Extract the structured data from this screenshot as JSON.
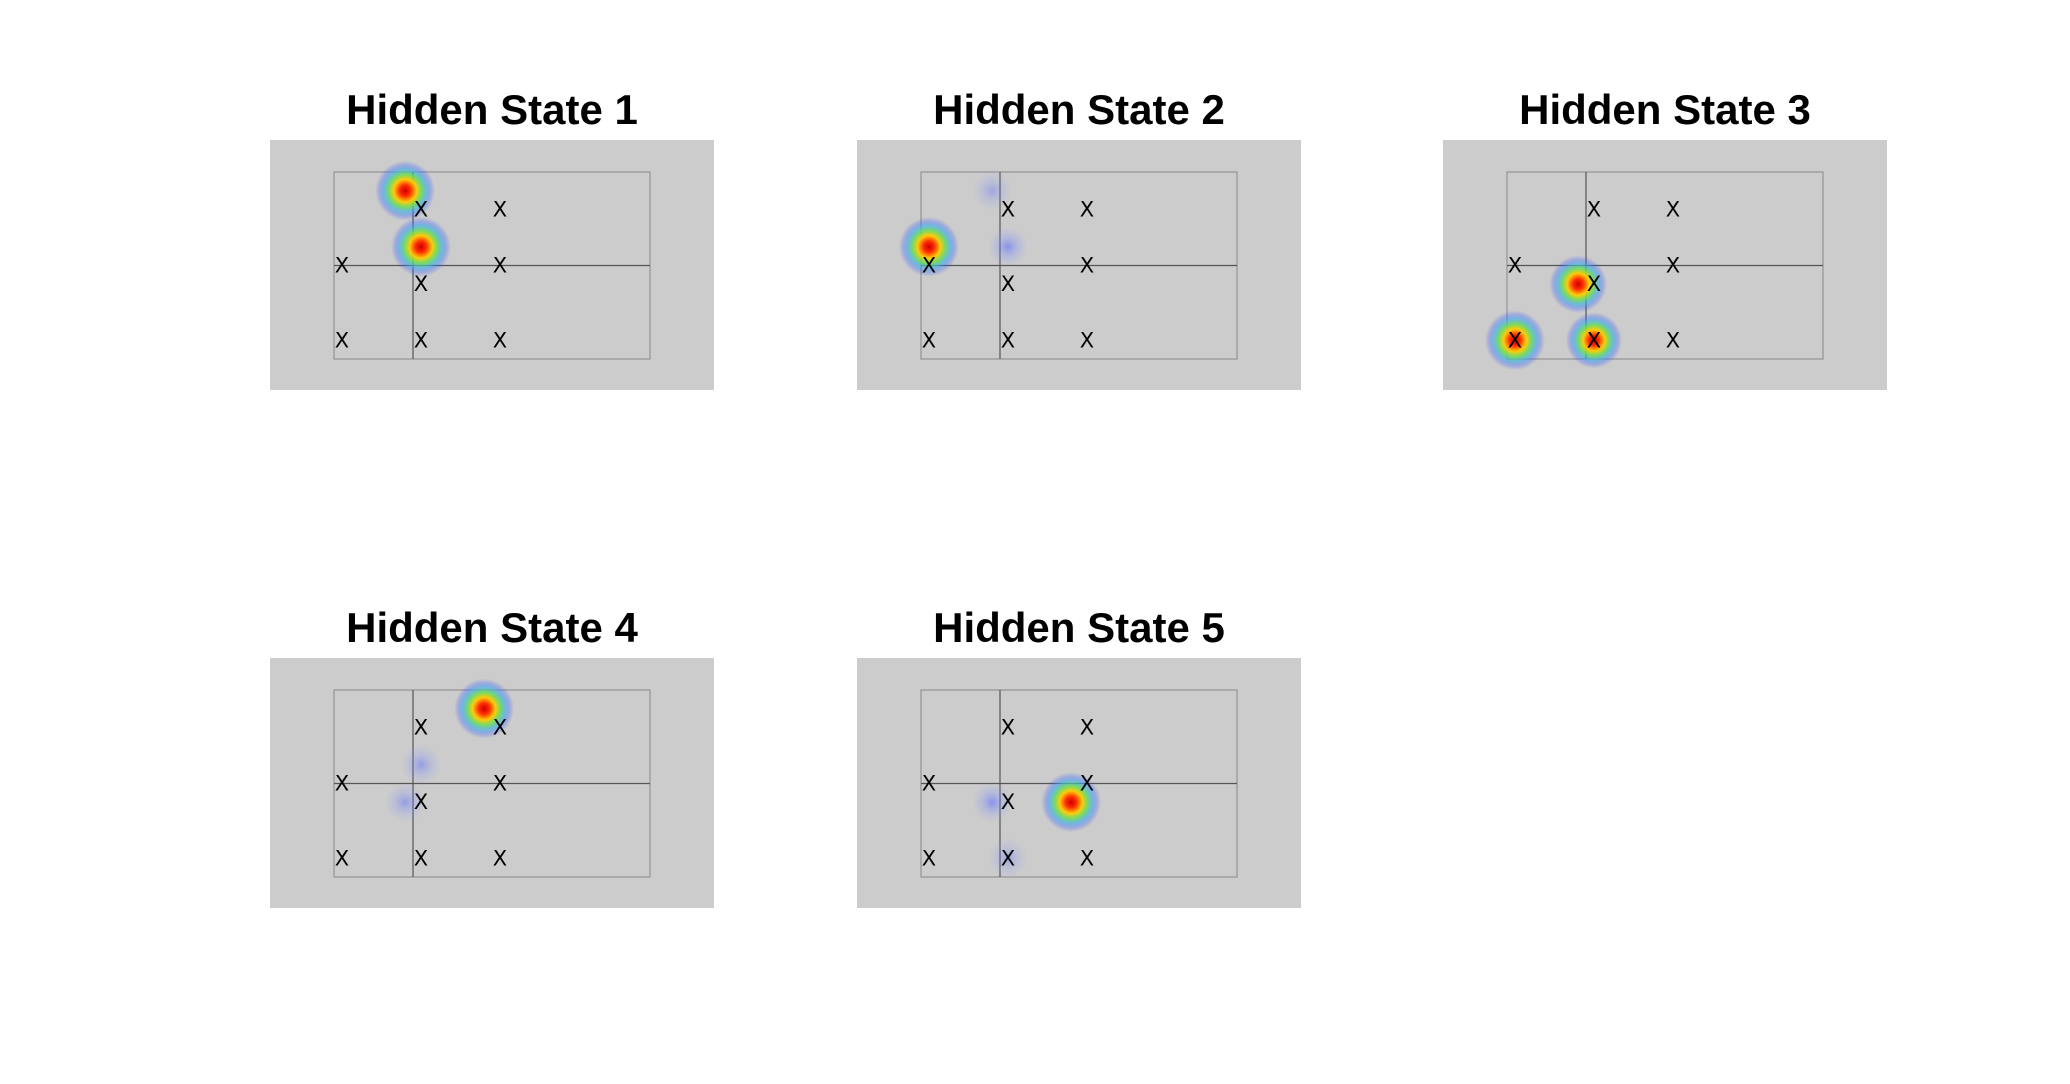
{
  "marker_text": "X",
  "chart_data": [
    {
      "type": "heatmap",
      "title": "Hidden State 1",
      "grid": true,
      "xlim": [
        0,
        4
      ],
      "ylim": [
        0,
        2
      ],
      "markers": [
        [
          0.1,
          1.0
        ],
        [
          0.1,
          0.2
        ],
        [
          1.1,
          0.8
        ],
        [
          1.1,
          1.6
        ],
        [
          1.1,
          0.2
        ],
        [
          2.1,
          1.6
        ],
        [
          2.1,
          1.0
        ],
        [
          2.1,
          0.2
        ]
      ],
      "hotspots": [
        {
          "x": 0.9,
          "y": 1.8,
          "intensity": 1.0
        },
        {
          "x": 1.1,
          "y": 1.2,
          "intensity": 1.0
        }
      ]
    },
    {
      "type": "heatmap",
      "title": "Hidden State 2",
      "grid": true,
      "xlim": [
        0,
        4
      ],
      "ylim": [
        0,
        2
      ],
      "markers": [
        [
          0.1,
          1.0
        ],
        [
          0.1,
          0.2
        ],
        [
          1.1,
          0.8
        ],
        [
          1.1,
          1.6
        ],
        [
          1.1,
          0.2
        ],
        [
          2.1,
          1.6
        ],
        [
          2.1,
          1.0
        ],
        [
          2.1,
          0.2
        ]
      ],
      "hotspots": [
        {
          "x": 0.1,
          "y": 1.2,
          "intensity": 1.0
        },
        {
          "x": 1.1,
          "y": 1.2,
          "intensity": 0.3
        },
        {
          "x": 0.9,
          "y": 1.8,
          "intensity": 0.2
        }
      ]
    },
    {
      "type": "heatmap",
      "title": "Hidden State 3",
      "grid": true,
      "xlim": [
        0,
        4
      ],
      "ylim": [
        0,
        2
      ],
      "markers": [
        [
          0.1,
          1.0
        ],
        [
          0.1,
          0.2
        ],
        [
          1.1,
          0.8
        ],
        [
          1.1,
          1.6
        ],
        [
          1.1,
          0.2
        ],
        [
          2.1,
          1.6
        ],
        [
          2.1,
          1.0
        ],
        [
          2.1,
          0.2
        ]
      ],
      "hotspots": [
        {
          "x": 0.1,
          "y": 0.2,
          "intensity": 1.0
        },
        {
          "x": 0.9,
          "y": 0.8,
          "intensity": 0.85
        },
        {
          "x": 1.1,
          "y": 0.2,
          "intensity": 0.75
        }
      ]
    },
    {
      "type": "heatmap",
      "title": "Hidden State 4",
      "grid": true,
      "xlim": [
        0,
        4
      ],
      "ylim": [
        0,
        2
      ],
      "markers": [
        [
          0.1,
          1.0
        ],
        [
          0.1,
          0.2
        ],
        [
          1.1,
          0.8
        ],
        [
          1.1,
          1.6
        ],
        [
          1.1,
          0.2
        ],
        [
          2.1,
          1.6
        ],
        [
          2.1,
          1.0
        ],
        [
          2.1,
          0.2
        ]
      ],
      "hotspots": [
        {
          "x": 1.9,
          "y": 1.8,
          "intensity": 1.0
        },
        {
          "x": 1.1,
          "y": 1.2,
          "intensity": 0.25
        },
        {
          "x": 0.9,
          "y": 0.8,
          "intensity": 0.25
        }
      ]
    },
    {
      "type": "heatmap",
      "title": "Hidden State 5",
      "grid": true,
      "xlim": [
        0,
        4
      ],
      "ylim": [
        0,
        2
      ],
      "markers": [
        [
          0.1,
          1.0
        ],
        [
          0.1,
          0.2
        ],
        [
          1.1,
          0.8
        ],
        [
          1.1,
          1.6
        ],
        [
          1.1,
          0.2
        ],
        [
          2.1,
          1.6
        ],
        [
          2.1,
          1.0
        ],
        [
          2.1,
          0.2
        ]
      ],
      "hotspots": [
        {
          "x": 1.9,
          "y": 0.8,
          "intensity": 1.0
        },
        {
          "x": 0.9,
          "y": 0.8,
          "intensity": 0.3
        },
        {
          "x": 1.1,
          "y": 0.2,
          "intensity": 0.2
        }
      ]
    }
  ]
}
